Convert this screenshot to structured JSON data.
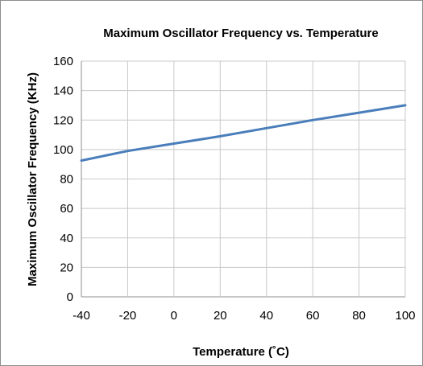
{
  "chart_data": {
    "type": "line",
    "title": "Maximum Oscillator Frequency vs. Temperature",
    "xlabel": "Temperature (˚C)",
    "ylabel": "Maximum Oscillator Frequency (KHz)",
    "xlim": [
      -40,
      100
    ],
    "ylim": [
      0,
      160
    ],
    "xticks": [
      -40,
      -20,
      0,
      20,
      40,
      60,
      80,
      100
    ],
    "yticks": [
      0,
      20,
      40,
      60,
      80,
      100,
      120,
      140,
      160
    ],
    "grid": true,
    "legend": "none",
    "series": [
      {
        "color": "#4a7ebb",
        "x": [
          -40,
          -20,
          0,
          20,
          40,
          60,
          80,
          100
        ],
        "y": [
          92.5,
          99,
          104,
          109,
          114.5,
          120,
          125,
          130
        ]
      }
    ]
  }
}
